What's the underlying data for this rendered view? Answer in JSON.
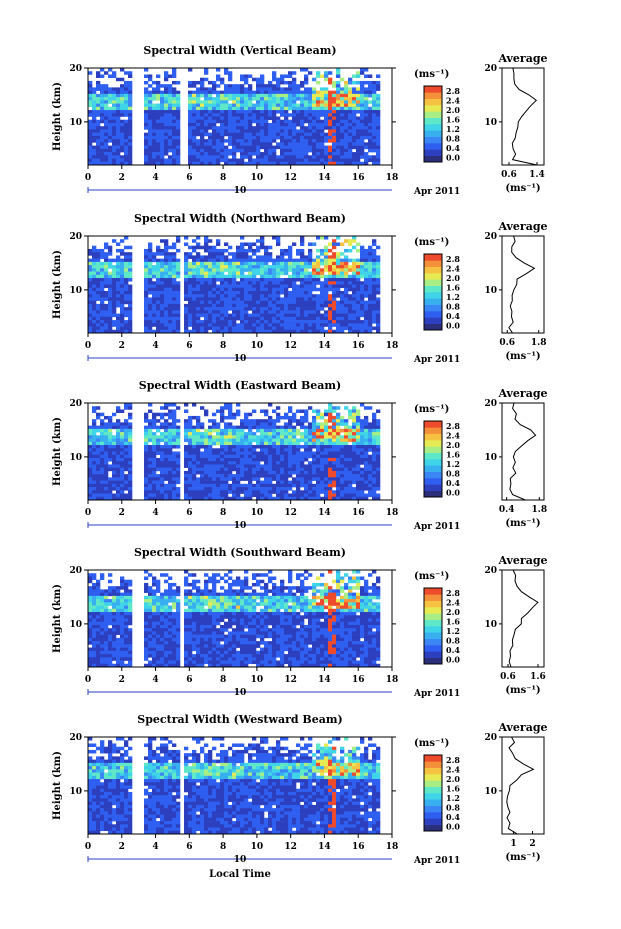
{
  "figure": {
    "date_label": "Apr 2011",
    "day_label": "10",
    "xlabel": "Local Time",
    "ylabel": "Height (km)",
    "unit_label": "(ms⁻¹)",
    "avg_title": "Average",
    "avg_xlabel": "(ms⁻¹)"
  },
  "chart_data": [
    {
      "type": "heatmap",
      "title": "Spectral Width (Vertical Beam)",
      "xlabel": "Local Time",
      "ylabel": "Height (km)",
      "xlim": [
        0,
        18
      ],
      "ylim": [
        2,
        20
      ],
      "x_ticks": [
        "0",
        "2",
        "4",
        "6",
        "8",
        "10",
        "12",
        "14",
        "16",
        "18"
      ],
      "y_ticks": [
        "10",
        "20"
      ],
      "gaps_hours": [
        [
          2.7,
          3.3
        ],
        [
          5.5,
          5.9
        ]
      ],
      "colorbar_ticks": [
        "0.0",
        "0.4",
        "0.8",
        "1.2",
        "1.6",
        "2.0",
        "2.4",
        "2.8"
      ],
      "colorbar_unit": "(ms⁻¹)"
    },
    {
      "type": "line",
      "title": "Average",
      "xlabel": "(ms⁻¹)",
      "x_ticks": [
        "0.6",
        "1.4"
      ],
      "y_ticks": [
        "10",
        "20"
      ],
      "xlim": [
        0.4,
        1.6
      ],
      "ylim": [
        2,
        20
      ],
      "height_km": [
        2,
        3,
        4,
        5,
        6,
        7,
        8,
        9,
        10,
        11,
        12,
        13,
        14,
        15,
        16,
        17,
        18,
        19,
        20
      ],
      "values": [
        1.4,
        0.7,
        0.75,
        0.7,
        0.72,
        0.75,
        0.8,
        0.85,
        0.9,
        0.95,
        1.05,
        1.25,
        1.4,
        1.2,
        0.85,
        0.75,
        0.7,
        0.75,
        0.7
      ]
    },
    {
      "type": "heatmap",
      "title": "Spectral Width (Northward Beam)",
      "xlabel": "Local Time",
      "ylabel": "Height (km)",
      "xlim": [
        0,
        18
      ],
      "ylim": [
        2,
        20
      ],
      "x_ticks": [
        "0",
        "2",
        "4",
        "6",
        "8",
        "10",
        "12",
        "14",
        "16",
        "18"
      ],
      "y_ticks": [
        "10",
        "20"
      ],
      "gaps_hours": [
        [
          2.6,
          3.2
        ],
        [
          5.4,
          5.8
        ]
      ],
      "colorbar_ticks": [
        "0.0",
        "0.4",
        "0.8",
        "1.2",
        "1.6",
        "2.0",
        "2.4",
        "2.8"
      ],
      "colorbar_unit": "(ms⁻¹)"
    },
    {
      "type": "line",
      "title": "Average",
      "xlabel": "(ms⁻¹)",
      "x_ticks": [
        "0.6",
        "1.8"
      ],
      "y_ticks": [
        "10",
        "20"
      ],
      "xlim": [
        0.4,
        2.0
      ],
      "ylim": [
        2,
        20
      ],
      "height_km": [
        2,
        3,
        4,
        5,
        6,
        7,
        8,
        9,
        10,
        11,
        12,
        13,
        14,
        15,
        16,
        17,
        18,
        19,
        20
      ],
      "values": [
        0.8,
        0.7,
        0.8,
        0.72,
        0.75,
        0.7,
        0.78,
        0.8,
        0.85,
        0.9,
        1.0,
        1.3,
        1.6,
        1.3,
        0.95,
        0.75,
        0.8,
        0.9,
        0.8
      ]
    },
    {
      "type": "heatmap",
      "title": "Spectral Width (Eastward Beam)",
      "xlabel": "Local Time",
      "ylabel": "Height (km)",
      "xlim": [
        0,
        18
      ],
      "ylim": [
        2,
        20
      ],
      "x_ticks": [
        "0",
        "2",
        "4",
        "6",
        "8",
        "10",
        "12",
        "14",
        "16",
        "18"
      ],
      "y_ticks": [
        "10",
        "20"
      ],
      "gaps_hours": [
        [
          2.6,
          3.2
        ],
        [
          5.4,
          5.8
        ]
      ],
      "colorbar_ticks": [
        "0.0",
        "0.4",
        "0.8",
        "1.2",
        "1.6",
        "2.0",
        "2.4",
        "2.8"
      ],
      "colorbar_unit": "(ms⁻¹)"
    },
    {
      "type": "line",
      "title": "Average",
      "xlabel": "(ms⁻¹)",
      "x_ticks": [
        "0.4",
        "1.8"
      ],
      "y_ticks": [
        "10",
        "20"
      ],
      "xlim": [
        0.2,
        2.0
      ],
      "ylim": [
        2,
        20
      ],
      "height_km": [
        2,
        3,
        4,
        5,
        6,
        7,
        8,
        9,
        10,
        11,
        12,
        13,
        14,
        15,
        16,
        17,
        18,
        19,
        20
      ],
      "values": [
        1.2,
        0.6,
        0.55,
        0.6,
        0.6,
        0.75,
        0.65,
        0.7,
        0.7,
        0.8,
        1.0,
        1.3,
        1.7,
        1.4,
        1.0,
        0.8,
        0.75,
        0.7,
        0.7
      ]
    },
    {
      "type": "heatmap",
      "title": "Spectral Width (Southward Beam)",
      "xlabel": "Local Time",
      "ylabel": "Height (km)",
      "xlim": [
        0,
        18
      ],
      "ylim": [
        2,
        20
      ],
      "x_ticks": [
        "0",
        "2",
        "4",
        "6",
        "8",
        "10",
        "12",
        "14",
        "16",
        "18"
      ],
      "y_ticks": [
        "10",
        "20"
      ],
      "gaps_hours": [
        [
          2.6,
          3.2
        ],
        [
          5.4,
          5.8
        ]
      ],
      "colorbar_ticks": [
        "0.0",
        "0.4",
        "0.8",
        "1.2",
        "1.6",
        "2.0",
        "2.4",
        "2.8"
      ],
      "colorbar_unit": "(ms⁻¹)"
    },
    {
      "type": "line",
      "title": "Average",
      "xlabel": "(ms⁻¹)",
      "x_ticks": [
        "0.6",
        "1.6"
      ],
      "y_ticks": [
        "10",
        "20"
      ],
      "xlim": [
        0.4,
        1.8
      ],
      "ylim": [
        2,
        20
      ],
      "height_km": [
        2,
        3,
        4,
        5,
        6,
        7,
        8,
        9,
        10,
        11,
        12,
        13,
        14,
        15,
        16,
        17,
        18,
        19,
        20
      ],
      "values": [
        0.7,
        0.65,
        0.7,
        0.72,
        0.75,
        0.8,
        0.85,
        0.9,
        1.0,
        1.1,
        1.25,
        1.45,
        1.55,
        1.3,
        1.0,
        0.85,
        0.8,
        0.9,
        0.8
      ]
    },
    {
      "type": "heatmap",
      "title": "Spectral Width (Westward Beam)",
      "xlabel": "Local Time",
      "ylabel": "Height (km)",
      "xlim": [
        0,
        18
      ],
      "ylim": [
        2,
        20
      ],
      "x_ticks": [
        "0",
        "2",
        "4",
        "6",
        "8",
        "10",
        "12",
        "14",
        "16",
        "18"
      ],
      "y_ticks": [
        "10",
        "20"
      ],
      "gaps_hours": [
        [
          2.6,
          3.2
        ],
        [
          5.4,
          5.8
        ]
      ],
      "colorbar_ticks": [
        "0.0",
        "0.4",
        "0.8",
        "1.2",
        "1.6",
        "2.0",
        "2.4",
        "2.8"
      ],
      "colorbar_unit": "(ms⁻¹)"
    },
    {
      "type": "line",
      "title": "Average",
      "xlabel": "(ms⁻¹)",
      "x_ticks": [
        "1",
        "2"
      ],
      "y_ticks": [
        "10",
        "20"
      ],
      "xlim": [
        0.4,
        2.6
      ],
      "ylim": [
        2,
        20
      ],
      "height_km": [
        2,
        3,
        4,
        5,
        6,
        7,
        8,
        9,
        10,
        11,
        12,
        13,
        14,
        15,
        16,
        17,
        18,
        19,
        20
      ],
      "values": [
        1.2,
        0.7,
        0.8,
        0.7,
        0.75,
        0.7,
        0.7,
        0.75,
        0.8,
        0.9,
        1.1,
        1.5,
        2.0,
        1.6,
        1.1,
        0.9,
        0.85,
        1.0,
        0.9
      ]
    }
  ]
}
